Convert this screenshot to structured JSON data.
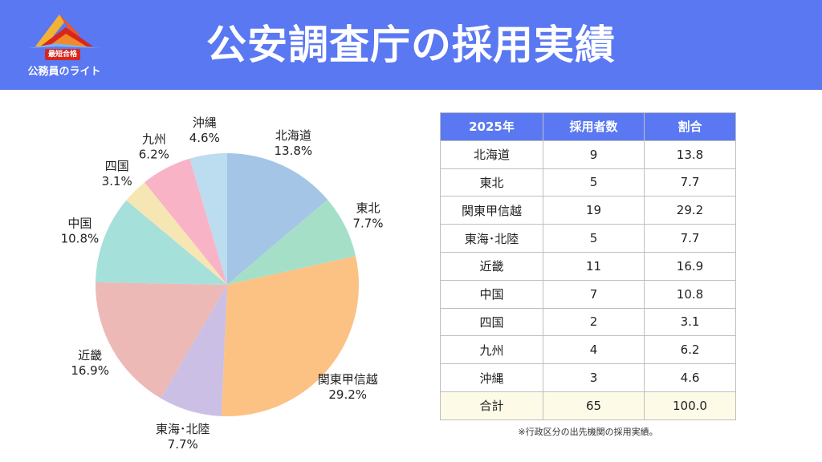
{
  "header": {
    "title": "公安調査庁の採用実績",
    "logo_badge": "最短合格",
    "logo_text": "公務員のライト"
  },
  "colors": {
    "header_bg": "#5a78f2",
    "total_row_bg": "#fdfbe8"
  },
  "chart_data": {
    "type": "pie",
    "start": "12 o'clock",
    "direction": "clockwise",
    "slices": [
      {
        "label": "北海道",
        "value": 13.8,
        "value_label": "13.8%",
        "color": "#a4c5e5"
      },
      {
        "label": "東北",
        "value": 7.7,
        "value_label": "7.7%",
        "color": "#a5dfc8"
      },
      {
        "label": "関東甲信越",
        "value": 29.2,
        "value_label": "29.2%",
        "color": "#fcc283"
      },
      {
        "label": "東海･北陸",
        "value": 7.7,
        "value_label": "7.7%",
        "color": "#cbbfe5"
      },
      {
        "label": "近畿",
        "value": 16.9,
        "value_label": "16.9%",
        "color": "#ecb9b6"
      },
      {
        "label": "中国",
        "value": 10.8,
        "value_label": "10.8%",
        "color": "#a6e0da"
      },
      {
        "label": "四国",
        "value": 3.1,
        "value_label": "3.1%",
        "color": "#f6e6b4"
      },
      {
        "label": "九州",
        "value": 6.2,
        "value_label": "6.2%",
        "color": "#f8b3c7"
      },
      {
        "label": "沖縄",
        "value": 4.6,
        "value_label": "4.6%",
        "color": "#bcdcef"
      }
    ]
  },
  "table": {
    "headers": [
      "2025年",
      "採用者数",
      "割合"
    ],
    "rows": [
      [
        "北海道",
        "9",
        "13.8"
      ],
      [
        "東北",
        "5",
        "7.7"
      ],
      [
        "関東甲信越",
        "19",
        "29.2"
      ],
      [
        "東海･北陸",
        "5",
        "7.7"
      ],
      [
        "近畿",
        "11",
        "16.9"
      ],
      [
        "中国",
        "7",
        "10.8"
      ],
      [
        "四国",
        "2",
        "3.1"
      ],
      [
        "九州",
        "4",
        "6.2"
      ],
      [
        "沖縄",
        "3",
        "4.6"
      ]
    ],
    "total": [
      "合計",
      "65",
      "100.0"
    ]
  },
  "note": "※行政区分の出先機関の採用実績。"
}
